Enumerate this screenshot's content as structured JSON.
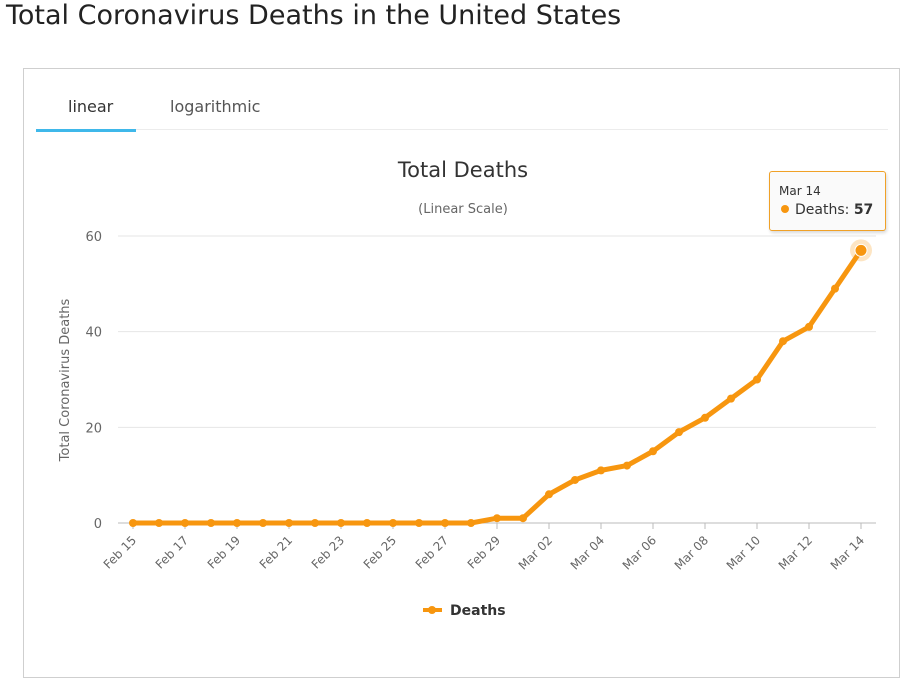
{
  "page": {
    "title": "Total Coronavirus Deaths in the United States"
  },
  "tabs": [
    {
      "label": "linear",
      "active": true
    },
    {
      "label": "logarithmic",
      "active": false
    }
  ],
  "colors": {
    "series": "#f7960f",
    "tab_underline": "#3fb8ea",
    "tooltip_border": "#f0a127"
  },
  "tooltip": {
    "date": "Mar 14",
    "series": "Deaths",
    "value": "57"
  },
  "chart_data": {
    "type": "line",
    "title": "Total Deaths",
    "subtitle": "(Linear Scale)",
    "xlabel": "",
    "ylabel": "Total Coronavirus Deaths",
    "ylim": [
      0,
      60
    ],
    "yticks": [
      0,
      20,
      40,
      60
    ],
    "grid": true,
    "legend": "bottom-center",
    "x": [
      "Feb 15",
      "Feb 16",
      "Feb 17",
      "Feb 18",
      "Feb 19",
      "Feb 20",
      "Feb 21",
      "Feb 22",
      "Feb 23",
      "Feb 24",
      "Feb 25",
      "Feb 26",
      "Feb 27",
      "Feb 28",
      "Feb 29",
      "Mar 01",
      "Mar 02",
      "Mar 03",
      "Mar 04",
      "Mar 05",
      "Mar 06",
      "Mar 07",
      "Mar 08",
      "Mar 09",
      "Mar 10",
      "Mar 11",
      "Mar 12",
      "Mar 13",
      "Mar 14"
    ],
    "x_tick_labels": [
      "Feb 15",
      "Feb 17",
      "Feb 19",
      "Feb 21",
      "Feb 23",
      "Feb 25",
      "Feb 27",
      "Feb 29",
      "Mar 02",
      "Mar 04",
      "Mar 06",
      "Mar 08",
      "Mar 10",
      "Mar 12",
      "Mar 14"
    ],
    "series": [
      {
        "name": "Deaths",
        "values": [
          0,
          0,
          0,
          0,
          0,
          0,
          0,
          0,
          0,
          0,
          0,
          0,
          0,
          0,
          1,
          1,
          6,
          9,
          11,
          12,
          15,
          19,
          22,
          26,
          30,
          38,
          41,
          49,
          57
        ]
      }
    ]
  }
}
